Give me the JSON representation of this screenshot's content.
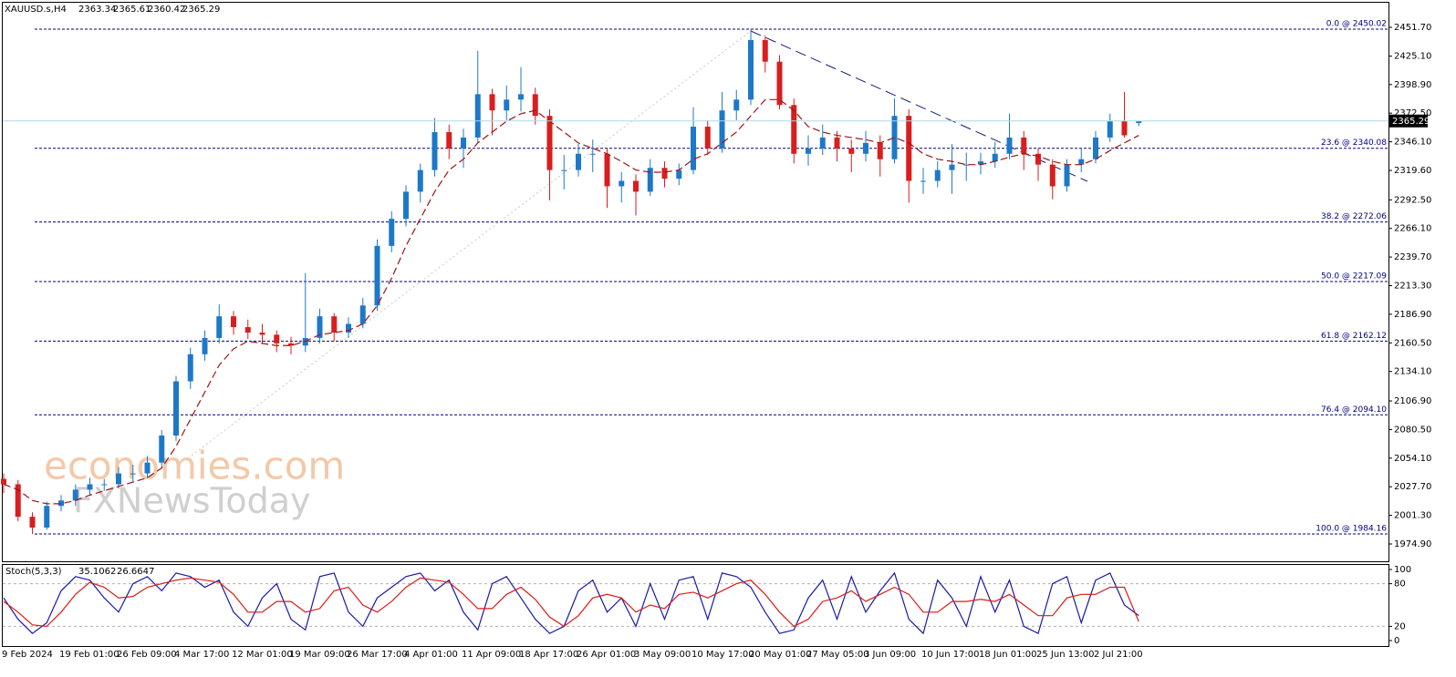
{
  "chart_data": [
    {
      "type": "candlestick",
      "title": "XAUUSD.s,H4",
      "categories": [
        "9 Feb 2024",
        null,
        null,
        null,
        "19 Feb 01:00",
        null,
        null,
        null,
        "26 Feb 09:00",
        null,
        null,
        null,
        "4 Mar 17:00",
        null,
        null,
        null,
        "12 Mar 01:00",
        null,
        null,
        null,
        "19 Mar 09:00",
        null,
        null,
        null,
        "26 Mar 17:00",
        null,
        null,
        null,
        "4 Apr 01:00",
        null,
        null,
        null,
        "11 Apr 09:00",
        null,
        null,
        null,
        "18 Apr 17:00",
        null,
        null,
        null,
        "26 Apr 01:00",
        null,
        null,
        null,
        "3 May 09:00",
        null,
        null,
        null,
        "10 May 17:00",
        null,
        null,
        null,
        "20 May 01:00",
        null,
        null,
        null,
        "27 May 05:00",
        null,
        null,
        null,
        "3 Jun 09:00",
        null,
        null,
        null,
        "10 Jun 17:00",
        null,
        null,
        null,
        "18 Jun 01:00",
        null,
        null,
        null,
        "25 Jun 13:00",
        null,
        null,
        null,
        "2 Jul 21:00",
        null,
        null,
        null
      ],
      "open": [
        2035,
        2030,
        2000,
        1990,
        2010,
        2015,
        2025,
        2030,
        2030,
        2040,
        2040,
        2050,
        2075,
        2125,
        2150,
        2165,
        2185,
        2175,
        2170,
        2168,
        2160,
        2158,
        2165,
        2185,
        2170,
        2178,
        2195,
        2250,
        2275,
        2300,
        2320,
        2355,
        2340,
        2350,
        2390,
        2375,
        2385,
        2390,
        2370,
        2320,
        2320,
        2335,
        2335,
        2305,
        2310,
        2300,
        2322,
        2312,
        2320,
        2360,
        2340,
        2375,
        2385,
        2440,
        2420,
        2380,
        2335,
        2340,
        2350,
        2340,
        2335,
        2345,
        2330,
        2370,
        2310,
        2310,
        2320,
        2325,
        2325,
        2328,
        2335,
        2350,
        2335,
        2325,
        2305,
        2325,
        2330,
        2350,
        2365,
        2363.34
      ],
      "high": [
        2040,
        2034,
        2004,
        2014,
        2020,
        2030,
        2036,
        2035,
        2046,
        2048,
        2056,
        2080,
        2130,
        2156,
        2172,
        2196,
        2190,
        2182,
        2178,
        2172,
        2166,
        2225,
        2192,
        2188,
        2184,
        2202,
        2256,
        2282,
        2306,
        2326,
        2368,
        2362,
        2358,
        2430,
        2395,
        2398,
        2415,
        2396,
        2376,
        2334,
        2344,
        2348,
        2340,
        2318,
        2316,
        2330,
        2328,
        2326,
        2378,
        2366,
        2392,
        2394,
        2450.02,
        2444,
        2426,
        2386,
        2352,
        2362,
        2356,
        2348,
        2356,
        2352,
        2386,
        2376,
        2322,
        2328,
        2344,
        2336,
        2336,
        2346,
        2372,
        2356,
        2340,
        2330,
        2330,
        2340,
        2356,
        2372,
        2392,
        2365.61
      ],
      "low": [
        2022,
        1996,
        1984.16,
        1988,
        2005,
        2010,
        2020,
        2024,
        2026,
        2032,
        2036,
        2046,
        2070,
        2118,
        2144,
        2160,
        2168,
        2164,
        2160,
        2152,
        2150,
        2152,
        2160,
        2162,
        2165,
        2174,
        2190,
        2244,
        2268,
        2290,
        2314,
        2330,
        2322,
        2345,
        2352,
        2366,
        2374,
        2362,
        2292,
        2302,
        2314,
        2318,
        2285,
        2290,
        2278,
        2296,
        2304,
        2306,
        2316,
        2334,
        2336,
        2366,
        2380,
        2410,
        2376,
        2326,
        2324,
        2334,
        2328,
        2318,
        2328,
        2314,
        2326,
        2290,
        2298,
        2304,
        2298,
        2310,
        2316,
        2322,
        2330,
        2320,
        2310,
        2293,
        2300,
        2318,
        2326,
        2346,
        2350,
        2360.42
      ],
      "close": [
        2030,
        2000,
        1990,
        2010,
        2015,
        2025,
        2030,
        2030,
        2040,
        2040,
        2050,
        2075,
        2125,
        2150,
        2165,
        2185,
        2175,
        2170,
        2168,
        2160,
        2158,
        2165,
        2185,
        2170,
        2178,
        2195,
        2250,
        2275,
        2300,
        2320,
        2355,
        2340,
        2350,
        2390,
        2375,
        2385,
        2390,
        2370,
        2320,
        2320,
        2335,
        2335,
        2305,
        2310,
        2300,
        2322,
        2312,
        2320,
        2360,
        2340,
        2375,
        2385,
        2440,
        2420,
        2380,
        2335,
        2340,
        2350,
        2340,
        2335,
        2345,
        2330,
        2370,
        2310,
        2310,
        2320,
        2325,
        2325,
        2328,
        2335,
        2350,
        2335,
        2325,
        2305,
        2325,
        2330,
        2350,
        2365,
        2352,
        2365.29
      ],
      "up_color": "#1e78c8",
      "down_color": "#d81e1e",
      "moving_average": {
        "color": "#a01414",
        "values": [
          2030,
          2025,
          2015,
          2012,
          2012,
          2015,
          2020,
          2024,
          2028,
          2032,
          2036,
          2045,
          2065,
          2090,
          2115,
          2140,
          2155,
          2162,
          2160,
          2158,
          2158,
          2162,
          2168,
          2170,
          2172,
          2178,
          2195,
          2220,
          2250,
          2275,
          2300,
          2320,
          2330,
          2345,
          2355,
          2365,
          2372,
          2375,
          2365,
          2355,
          2345,
          2340,
          2335,
          2328,
          2320,
          2318,
          2318,
          2320,
          2330,
          2335,
          2345,
          2355,
          2370,
          2385,
          2385,
          2375,
          2360,
          2355,
          2352,
          2350,
          2348,
          2345,
          2350,
          2345,
          2335,
          2330,
          2328,
          2325,
          2325,
          2328,
          2332,
          2335,
          2333,
          2328,
          2325,
          2325,
          2330,
          2338,
          2345,
          2352
        ]
      },
      "levels": [
        {
          "value": 2450.02,
          "label": "0.0 @ 2450.02"
        },
        {
          "value": 2340.08,
          "label": "23.6 @ 2340.08"
        },
        {
          "value": 2272.06,
          "label": "38.2 @ 2272.06"
        },
        {
          "value": 2217.09,
          "label": "50.0 @ 2217.09"
        },
        {
          "value": 2162.12,
          "label": "61.8 @ 2162.12"
        },
        {
          "value": 2094.1,
          "label": "76.4 @ 2094.10"
        },
        {
          "value": 1984.16,
          "label": "100.0 @ 1984.16"
        }
      ],
      "level_color": "#000080",
      "ylim": [
        1957.2,
        2476.9
      ],
      "yticks": [
        {
          "value": 2451.7,
          "label": "2451.70"
        },
        {
          "value": 2425.1,
          "label": "2425.10"
        },
        {
          "value": 2398.9,
          "label": "2398.90"
        },
        {
          "value": 2372.5,
          "label": "2372.50"
        },
        {
          "value": 2346.1,
          "label": "2346.10"
        },
        {
          "value": 2319.6,
          "label": "2319.60"
        },
        {
          "value": 2292.5,
          "label": "2292.50"
        },
        {
          "value": 2266.1,
          "label": "2266.10"
        },
        {
          "value": 2239.7,
          "label": "2239.70"
        },
        {
          "value": 2213.3,
          "label": "2213.30"
        },
        {
          "value": 2186.9,
          "label": "2186.90"
        },
        {
          "value": 2160.5,
          "label": "2160.50"
        },
        {
          "value": 2134.1,
          "label": "2134.10"
        },
        {
          "value": 2106.9,
          "label": "2106.90"
        },
        {
          "value": 2080.5,
          "label": "2080.50"
        },
        {
          "value": 2054.1,
          "label": "2054.10"
        },
        {
          "value": 2027.7,
          "label": "2027.70"
        },
        {
          "value": 2001.3,
          "label": "2001.30"
        },
        {
          "value": 1974.9,
          "label": "1974.90"
        }
      ],
      "watermark": [
        "economies.com",
        "FXNewsToday"
      ]
    },
    {
      "type": "line",
      "title": "Stoch(5,3,3)",
      "series": [
        {
          "color": "#1a1aa8",
          "values": [
            60,
            30,
            10,
            25,
            70,
            90,
            85,
            60,
            40,
            80,
            90,
            70,
            95,
            90,
            75,
            85,
            40,
            20,
            60,
            80,
            30,
            15,
            90,
            95,
            40,
            20,
            60,
            75,
            90,
            95,
            70,
            85,
            40,
            15,
            80,
            90,
            60,
            30,
            10,
            20,
            70,
            85,
            40,
            60,
            20,
            80,
            30,
            85,
            90,
            30,
            95,
            90,
            75,
            40,
            10,
            15,
            60,
            85,
            30,
            90,
            40,
            70,
            95,
            30,
            10,
            85,
            60,
            20,
            90,
            40,
            85,
            20,
            10,
            80,
            90,
            25,
            85,
            95,
            50,
            35.1062
          ]
        },
        {
          "color": "#e01818",
          "values": [
            55,
            40,
            22,
            20,
            40,
            65,
            82,
            75,
            60,
            62,
            75,
            80,
            85,
            88,
            85,
            82,
            65,
            40,
            40,
            55,
            55,
            40,
            45,
            70,
            75,
            50,
            40,
            55,
            75,
            88,
            85,
            82,
            65,
            45,
            45,
            65,
            75,
            58,
            33,
            20,
            35,
            60,
            65,
            60,
            40,
            50,
            45,
            65,
            68,
            60,
            70,
            80,
            85,
            65,
            40,
            20,
            30,
            55,
            60,
            70,
            55,
            65,
            75,
            65,
            40,
            40,
            55,
            55,
            58,
            55,
            65,
            50,
            35,
            35,
            60,
            65,
            65,
            75,
            75,
            26.6647
          ]
        }
      ],
      "ylim": [
        0,
        100
      ],
      "yticks": [
        0,
        20,
        80,
        100
      ],
      "levels": [
        20,
        80
      ]
    }
  ]
}
